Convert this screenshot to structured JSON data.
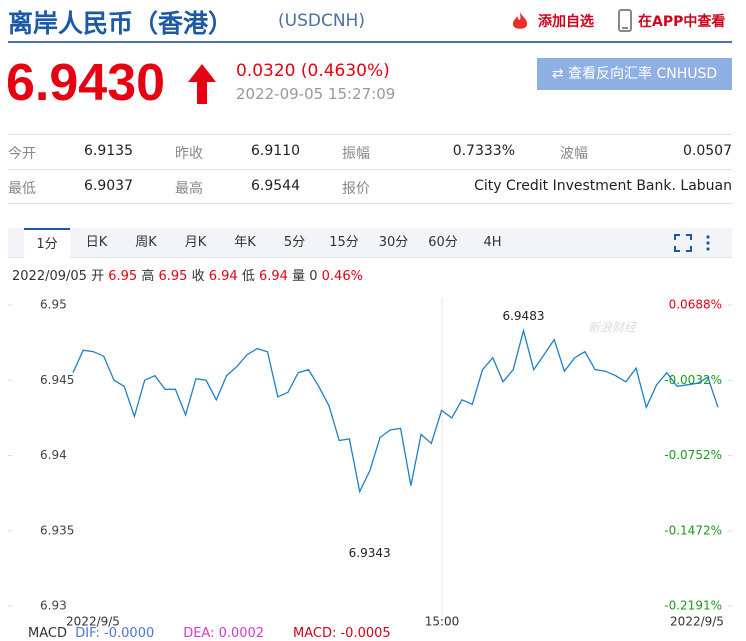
{
  "header": {
    "title": "离岸人民币（香港）",
    "code": "(USDCNH)",
    "actions": [
      "添加自选",
      "在APP中查看"
    ]
  },
  "quote": {
    "price": "6.9430",
    "change": "0.0320 (0.4630%)",
    "time": "2022-09-05 15:27:09",
    "button": "查看反向汇率 CNHUSD"
  },
  "stats": {
    "rows": [
      [
        {
          "label": "今开",
          "value": "6.9135"
        },
        {
          "label": "昨收",
          "value": "6.9110"
        },
        {
          "label": "振幅",
          "value": "0.7333%"
        },
        {
          "label": "波幅",
          "value": "0.0507"
        }
      ],
      [
        {
          "label": "最低",
          "value": "6.9037"
        },
        {
          "label": "最高",
          "value": "6.9544"
        },
        {
          "label": "报价",
          "value": "City Credit Investment Bank. Labuan"
        }
      ]
    ]
  },
  "tabs": [
    "1分",
    "日K",
    "周K",
    "月K",
    "年K",
    "5分",
    "15分",
    "30分",
    "60分",
    "4H"
  ],
  "ohlc": {
    "date": "2022/09/05",
    "items": [
      {
        "label": "开",
        "value": "6.95"
      },
      {
        "label": "高",
        "value": "6.95"
      },
      {
        "label": "收",
        "value": "6.94"
      },
      {
        "label": "低",
        "value": "6.94"
      },
      {
        "label": "量",
        "value": "0"
      }
    ],
    "pct": "0.46%"
  },
  "chart": {
    "type": "line",
    "color": "#1f80c4",
    "watermark": "新浪财经",
    "values": [
      6.9455,
      6.947,
      6.9469,
      6.9466,
      6.945,
      6.9446,
      6.9426,
      6.945,
      6.9453,
      6.9444,
      6.9444,
      6.9427,
      6.9451,
      6.945,
      6.9437,
      6.9453,
      6.9459,
      6.9467,
      6.9471,
      6.9469,
      6.9439,
      6.9442,
      6.9455,
      6.9457,
      6.9446,
      6.9433,
      6.941,
      6.9411,
      6.9376,
      6.939,
      6.9412,
      6.9417,
      6.9418,
      6.938,
      6.9414,
      6.9408,
      6.943,
      6.9425,
      6.9437,
      6.9434,
      6.9457,
      6.9465,
      6.9449,
      6.9457,
      6.9483,
      6.9457,
      6.9467,
      6.9477,
      6.9456,
      6.9465,
      6.9469,
      6.9457,
      6.9456,
      6.9453,
      6.9449,
      6.9458,
      6.9432,
      6.9447,
      6.9455,
      6.9446,
      6.9447,
      6.9448,
      6.9452,
      6.9432
    ],
    "ylim": [
      6.93,
      6.95
    ],
    "yticks": [
      6.93,
      6.935,
      6.94,
      6.945,
      6.95
    ],
    "y2lim": [
      -0.2191,
      0.0688
    ],
    "y2ticks": [
      {
        "value": -0.2191,
        "label": "-0.2191%"
      },
      {
        "value": -0.1472,
        "label": "-0.1472%"
      },
      {
        "value": -0.0752,
        "label": "-0.0752%"
      },
      {
        "value": -0.0032,
        "label": "-0.0032%"
      },
      {
        "value": 0.0688,
        "label": "0.0688%"
      }
    ],
    "x_labels": [
      "2022/9/5",
      "15:00",
      "2022/9/5"
    ],
    "max_label": "6.9483",
    "min_label": "6.9343"
  },
  "macd": {
    "title": "MACD",
    "dif": "DIF: -0.0000",
    "dea": "DEA: 0.0002",
    "macd": "MACD: -0.0005"
  }
}
